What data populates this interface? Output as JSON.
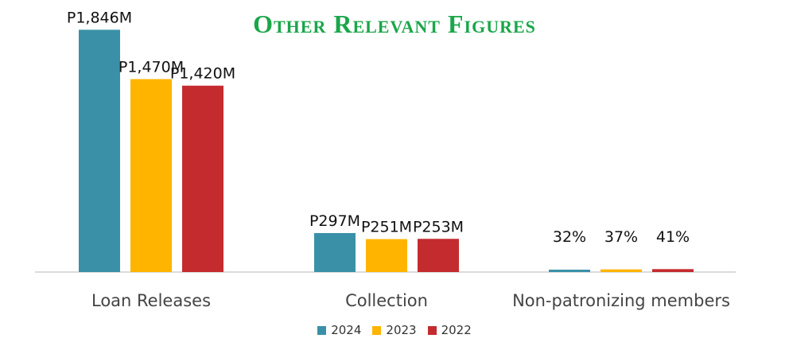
{
  "title": "Other Relevant Figures",
  "colors": {
    "2024": "#3a91a7",
    "2023": "#ffb400",
    "2022": "#c42b2f",
    "title": "#1aa64a"
  },
  "chart_data": {
    "type": "bar",
    "categories": [
      "Loan Releases",
      "Collection",
      "Non-patronizing members"
    ],
    "series": [
      {
        "name": "2024",
        "values": [
          1846,
          297,
          32
        ],
        "labels": [
          "P1,846M",
          "P297M",
          "32%"
        ]
      },
      {
        "name": "2023",
        "values": [
          1470,
          251,
          37
        ],
        "labels": [
          "P1,470M",
          "P251M",
          "37%"
        ]
      },
      {
        "name": "2022",
        "values": [
          1420,
          253,
          41
        ],
        "labels": [
          "P1,420M",
          "P253M",
          "41%"
        ]
      }
    ],
    "ylim": [
      0,
      2000
    ],
    "legend": "bottom",
    "grid": false
  }
}
